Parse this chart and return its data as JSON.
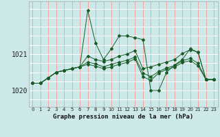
{
  "xlabel": "Graphe pression niveau de la mer (hPa)",
  "bg_color": "#cce8e8",
  "grid_color_h": "#ffffff",
  "grid_color_v": "#ffaaaa",
  "line_color": "#1a5c28",
  "hours": [
    0,
    1,
    2,
    3,
    4,
    5,
    6,
    7,
    8,
    9,
    10,
    11,
    12,
    13,
    14,
    15,
    16,
    17,
    18,
    19,
    20,
    21,
    22,
    23
  ],
  "main_series": [
    1020.2,
    1020.2,
    1020.35,
    1020.5,
    1020.55,
    1020.6,
    1020.65,
    1022.2,
    1021.3,
    1020.85,
    1021.15,
    1021.5,
    1021.5,
    1021.45,
    1021.4,
    1020.0,
    1020.0,
    1020.5,
    1020.7,
    1020.85,
    1021.15,
    1021.05,
    1020.3,
    1020.3
  ],
  "s2": [
    1020.2,
    1020.2,
    1020.35,
    1020.5,
    1020.55,
    1020.6,
    1020.65,
    1020.95,
    1020.85,
    1020.8,
    1020.85,
    1020.95,
    1021.0,
    1021.1,
    1020.6,
    1020.65,
    1020.72,
    1020.78,
    1020.85,
    1021.02,
    1021.12,
    1021.05,
    1020.3,
    1020.3
  ],
  "s3": [
    1020.2,
    1020.2,
    1020.35,
    1020.5,
    1020.55,
    1020.6,
    1020.65,
    1020.78,
    1020.73,
    1020.65,
    1020.72,
    1020.78,
    1020.83,
    1020.92,
    1020.48,
    1020.38,
    1020.52,
    1020.62,
    1020.68,
    1020.82,
    1020.88,
    1020.75,
    1020.3,
    1020.3
  ],
  "s4": [
    1020.2,
    1020.2,
    1020.35,
    1020.5,
    1020.55,
    1020.6,
    1020.65,
    1020.72,
    1020.67,
    1020.6,
    1020.65,
    1020.72,
    1020.77,
    1020.87,
    1020.38,
    1020.28,
    1020.48,
    1020.58,
    1020.64,
    1020.77,
    1020.82,
    1020.68,
    1020.3,
    1020.3
  ],
  "yticks": [
    1020,
    1021
  ],
  "ylim": [
    1019.55,
    1022.45
  ],
  "xlim": [
    -0.5,
    23.5
  ]
}
